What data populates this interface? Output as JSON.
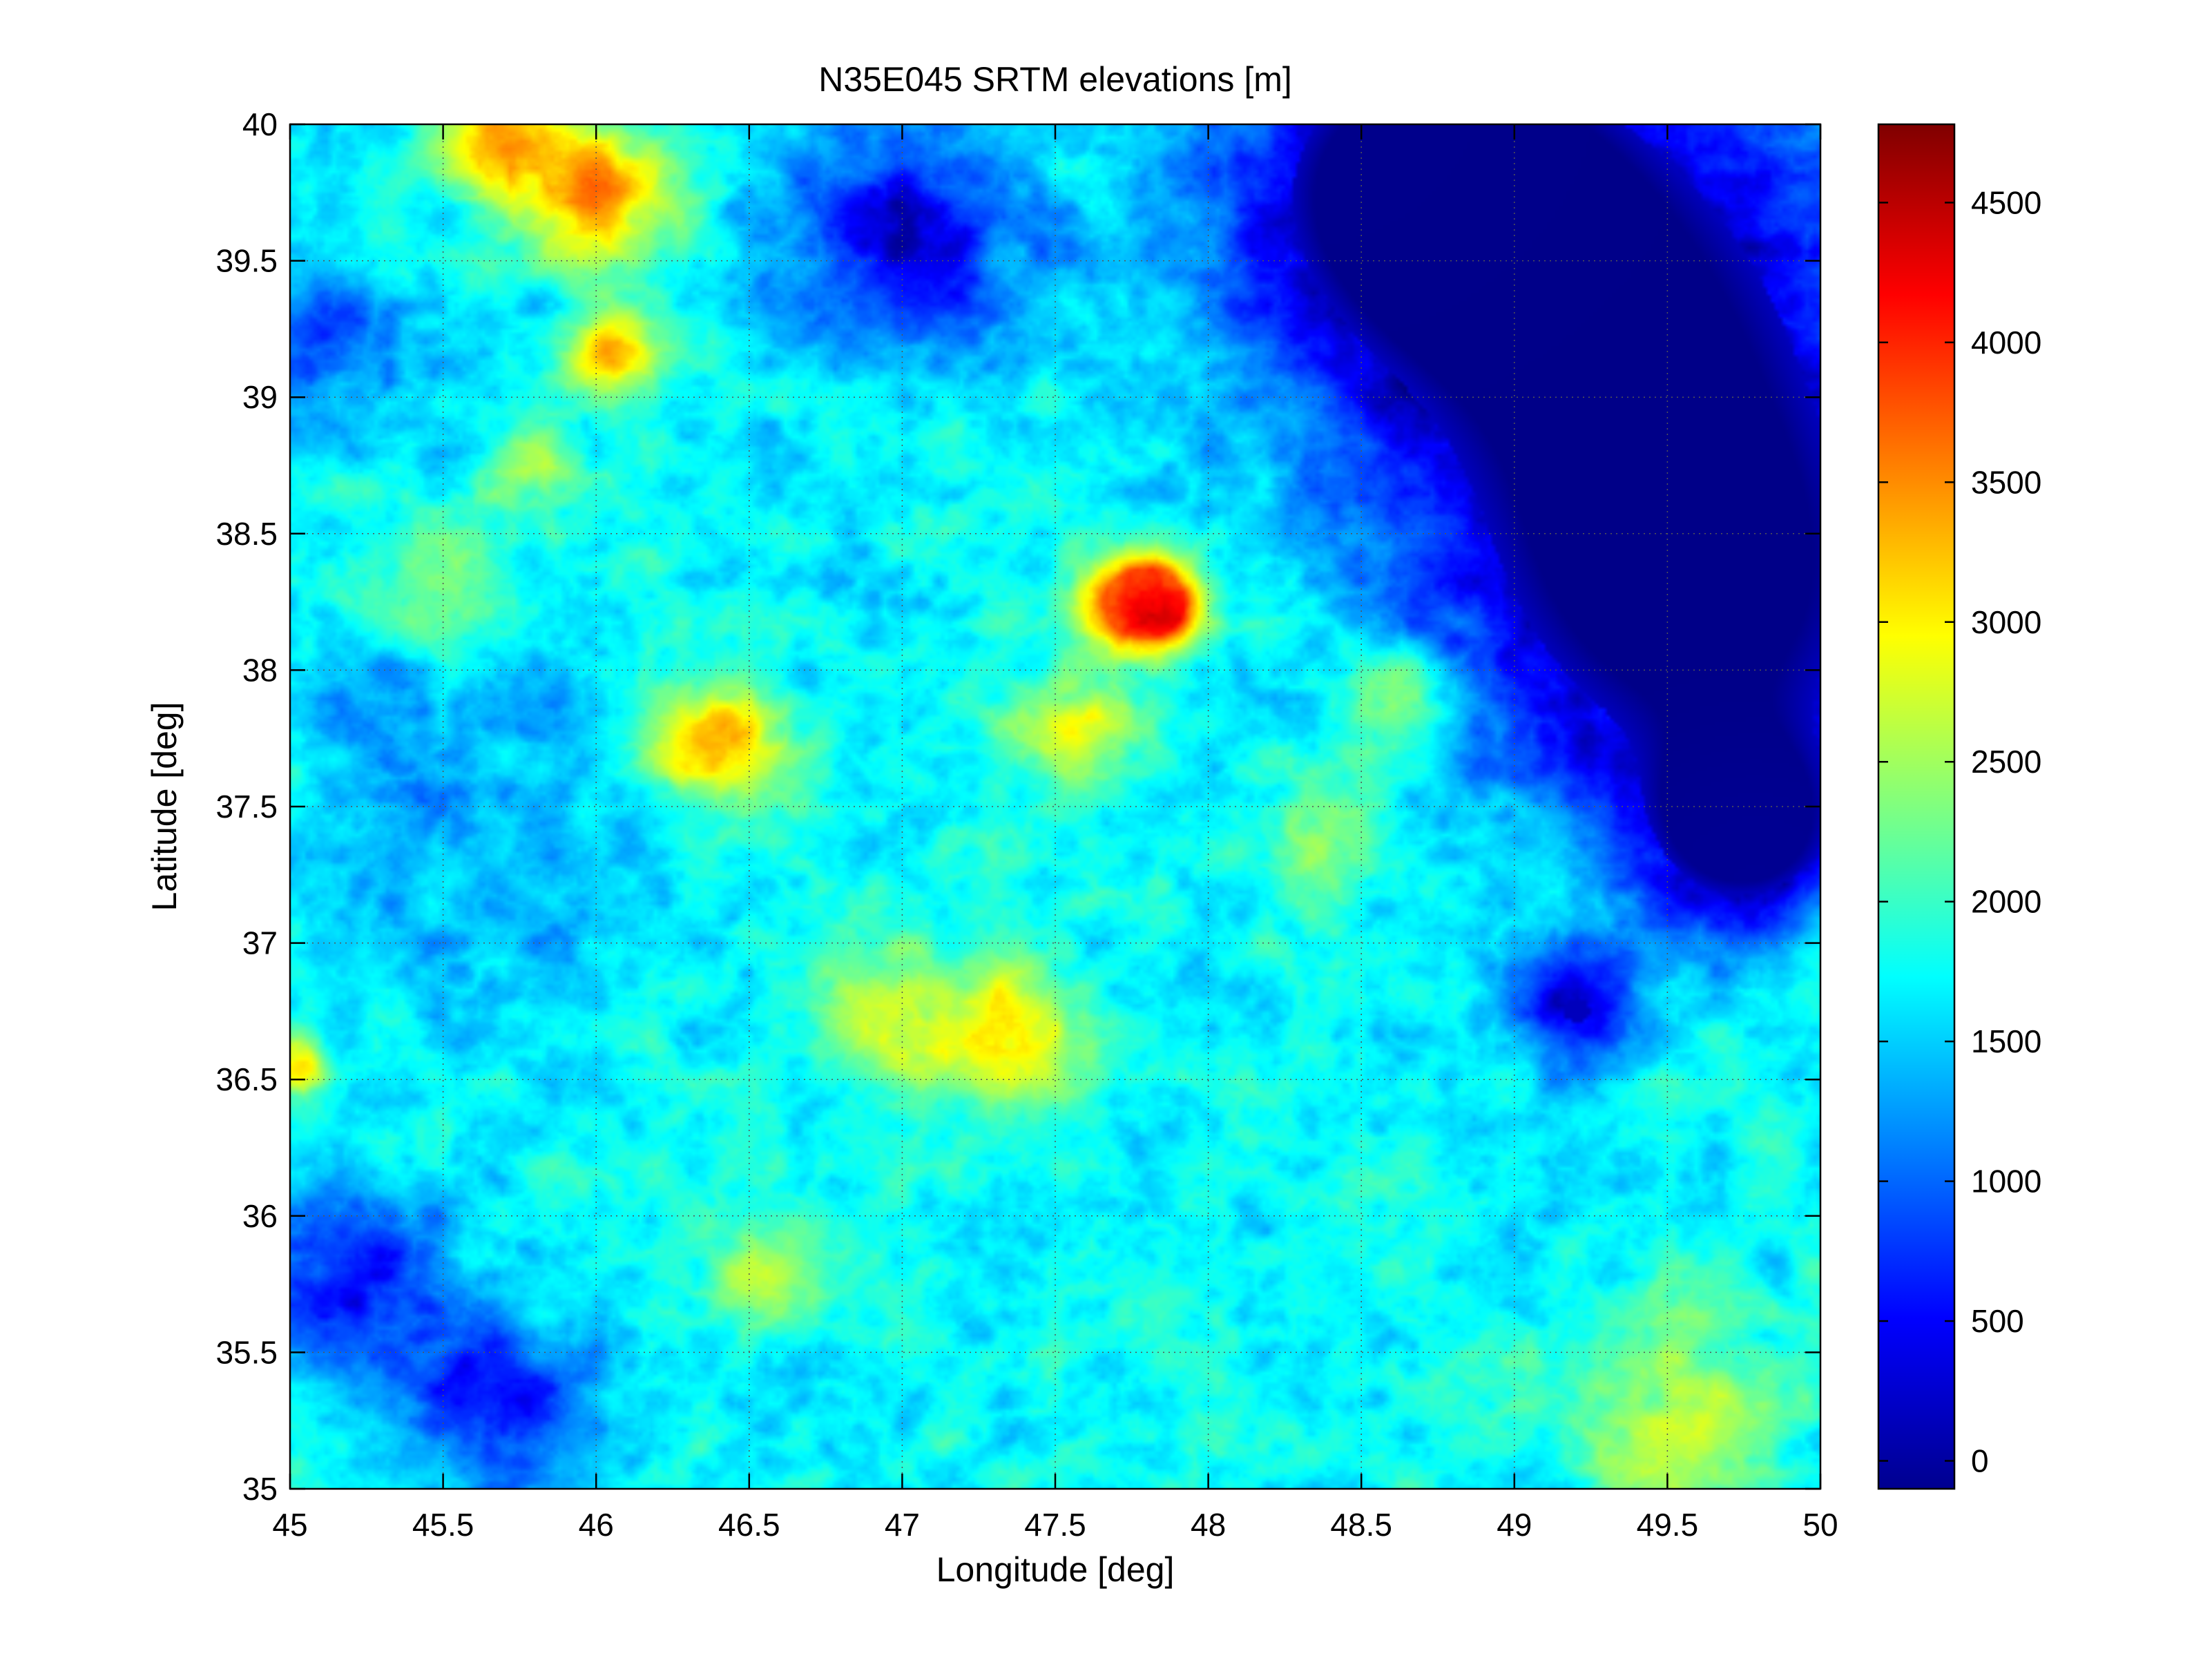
{
  "chart_data": {
    "type": "heatmap",
    "title": "N35E045 SRTM elevations [m]",
    "xlabel": "Longitude [deg]",
    "ylabel": "Latitude [deg]",
    "xlim": [
      45,
      50
    ],
    "ylim": [
      35,
      40
    ],
    "xticks": [
      "45",
      "45.5",
      "46",
      "46.5",
      "47",
      "47.5",
      "48",
      "48.5",
      "49",
      "49.5",
      "50"
    ],
    "yticks": [
      "35",
      "35.5",
      "36",
      "36.5",
      "37",
      "37.5",
      "38",
      "38.5",
      "39",
      "39.5",
      "40"
    ],
    "grid": true,
    "colormap": "jet",
    "colorbar": {
      "range": [
        -100,
        4780
      ],
      "ticks": [
        "0",
        "500",
        "1000",
        "1500",
        "2000",
        "2500",
        "3000",
        "3500",
        "4000",
        "4500"
      ]
    },
    "features": [
      {
        "lon": 47.82,
        "lat": 38.25,
        "elevation": 4500,
        "r": 0.12
      },
      {
        "lon": 47.75,
        "lat": 38.24,
        "elevation": 3800,
        "r": 0.2
      },
      {
        "lon": 46.4,
        "lat": 37.73,
        "elevation": 3400,
        "r": 0.22
      },
      {
        "lon": 46.05,
        "lat": 39.15,
        "elevation": 3400,
        "r": 0.15
      },
      {
        "lon": 46.0,
        "lat": 39.75,
        "elevation": 3300,
        "r": 0.25
      },
      {
        "lon": 45.7,
        "lat": 39.95,
        "elevation": 3200,
        "r": 0.2
      },
      {
        "lon": 47.55,
        "lat": 37.75,
        "elevation": 2900,
        "r": 0.2
      },
      {
        "lon": 47.35,
        "lat": 36.65,
        "elevation": 2800,
        "r": 0.3
      },
      {
        "lon": 46.95,
        "lat": 36.75,
        "elevation": 2700,
        "r": 0.25
      },
      {
        "lon": 45.02,
        "lat": 36.55,
        "elevation": 3000,
        "r": 0.1
      },
      {
        "lon": 48.6,
        "lat": 37.9,
        "elevation": 2600,
        "r": 0.2
      },
      {
        "lon": 49.5,
        "lat": 35.3,
        "elevation": 2600,
        "r": 0.35
      },
      {
        "lon": 46.55,
        "lat": 35.8,
        "elevation": 2500,
        "r": 0.2
      },
      {
        "lon": 45.5,
        "lat": 38.3,
        "elevation": 2400,
        "r": 0.25
      },
      {
        "lon": 45.8,
        "lat": 38.75,
        "elevation": 2600,
        "r": 0.15
      },
      {
        "lon": 48.4,
        "lat": 37.4,
        "elevation": 2300,
        "r": 0.25
      },
      {
        "lon": 45.45,
        "lat": 37.85,
        "elevation": 1300,
        "r": 0.45
      },
      {
        "lon": 45.75,
        "lat": 37.3,
        "elevation": 1300,
        "r": 0.55
      },
      {
        "lon": 49.3,
        "lat": 39.3,
        "elevation": -60,
        "r": 0.95
      },
      {
        "lon": 49.6,
        "lat": 38.2,
        "elevation": -60,
        "r": 0.8
      },
      {
        "lon": 48.7,
        "lat": 39.8,
        "elevation": -40,
        "r": 0.6
      },
      {
        "lon": 49.75,
        "lat": 37.4,
        "elevation": 0,
        "r": 0.35
      },
      {
        "lon": 49.2,
        "lat": 36.75,
        "elevation": 200,
        "r": 0.22
      },
      {
        "lon": 47.0,
        "lat": 39.6,
        "elevation": 300,
        "r": 0.4
      },
      {
        "lon": 45.2,
        "lat": 35.8,
        "elevation": 500,
        "r": 0.35
      },
      {
        "lon": 45.7,
        "lat": 35.3,
        "elevation": 400,
        "r": 0.3
      },
      {
        "lon": 45.05,
        "lat": 39.2,
        "elevation": 700,
        "r": 0.3
      }
    ]
  }
}
